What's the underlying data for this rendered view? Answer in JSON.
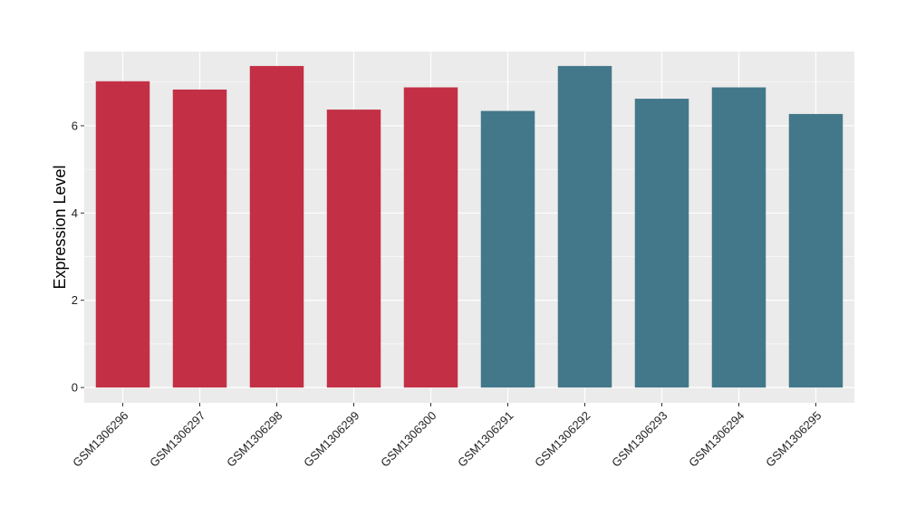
{
  "chart_data": {
    "type": "bar",
    "title": "",
    "xlabel": "",
    "ylabel": "Expression Level",
    "ylim": [
      -0.35,
      7.7
    ],
    "yticks": [
      0,
      2,
      4,
      6
    ],
    "yticks_labels": [
      "0",
      "2",
      "4",
      "6"
    ],
    "grid": true,
    "legend": "none",
    "categories": [
      "GSM1306296",
      "GSM1306297",
      "GSM1306298",
      "GSM1306299",
      "GSM1306300",
      "GSM1306291",
      "GSM1306292",
      "GSM1306293",
      "GSM1306294",
      "GSM1306295"
    ],
    "values": [
      7.02,
      6.83,
      7.37,
      6.37,
      6.88,
      6.34,
      7.37,
      6.62,
      6.88,
      6.27
    ],
    "groups": [
      0,
      0,
      0,
      0,
      0,
      1,
      1,
      1,
      1,
      1
    ],
    "colors": [
      "#C33046",
      "#43788A"
    ],
    "panel_background": "#EBEBEB",
    "grid_color": "#FFFFFF"
  }
}
